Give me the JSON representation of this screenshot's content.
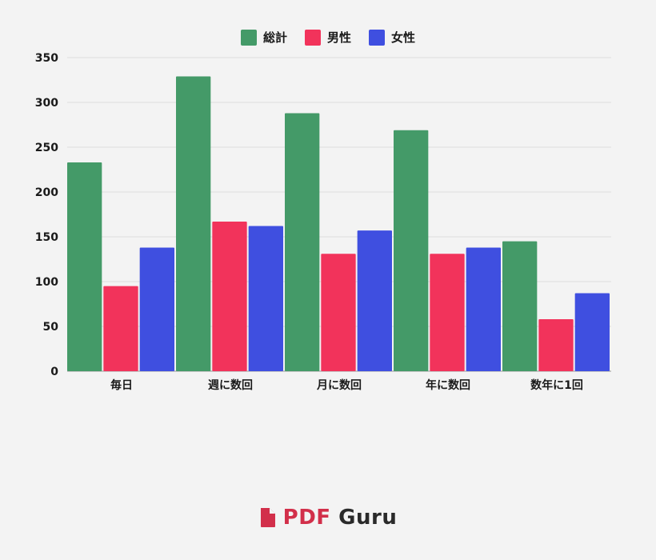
{
  "legend": [
    {
      "label": "総計",
      "color": "#449a68"
    },
    {
      "label": "男性",
      "color": "#f2335b"
    },
    {
      "label": "女性",
      "color": "#3f4fe0"
    }
  ],
  "chart_data": {
    "type": "bar",
    "categories": [
      "毎日",
      "週に数回",
      "月に数回",
      "年に数回",
      "数年に1回"
    ],
    "series": [
      {
        "name": "総計",
        "color": "#449a68",
        "values": [
          233,
          329,
          288,
          269,
          145
        ]
      },
      {
        "name": "男性",
        "color": "#f2335b",
        "values": [
          95,
          167,
          131,
          131,
          58
        ]
      },
      {
        "name": "女性",
        "color": "#3f4fe0",
        "values": [
          138,
          162,
          157,
          138,
          87
        ]
      }
    ],
    "title": "",
    "xlabel": "",
    "ylabel": "",
    "ylim": [
      0,
      350
    ],
    "yticks": [
      0,
      50,
      100,
      150,
      200,
      250,
      300,
      350
    ],
    "grid": true,
    "legend_position": "top-center"
  },
  "brand": {
    "name_part1": "PDF",
    "name_part2": "Guru",
    "icon": "file-icon",
    "accent_color": "#d22f4a"
  }
}
